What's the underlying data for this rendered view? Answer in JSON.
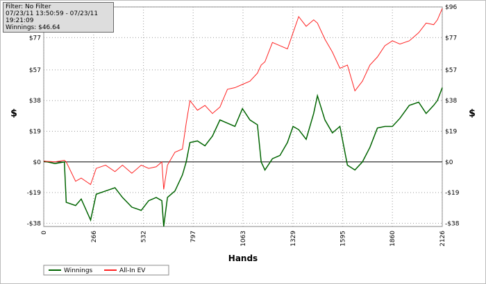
{
  "info": {
    "filter": "Filter: No Filter",
    "range": "07/23/11 13:50:59 - 07/23/11 19:21:09",
    "winnings": "Winnings: $46.64"
  },
  "chart_data": {
    "type": "line",
    "x_label": "Hands",
    "y_label": "$",
    "y2_label": "$",
    "x": [
      0,
      60,
      110,
      120,
      170,
      200,
      250,
      280,
      330,
      380,
      420,
      470,
      520,
      560,
      600,
      630,
      640,
      660,
      700,
      740,
      760,
      780,
      820,
      860,
      900,
      940,
      980,
      1020,
      1060,
      1100,
      1140,
      1160,
      1180,
      1220,
      1260,
      1300,
      1330,
      1360,
      1400,
      1440,
      1460,
      1500,
      1540,
      1580,
      1620,
      1660,
      1700,
      1740,
      1780,
      1820,
      1860,
      1900,
      1950,
      2000,
      2040,
      2080,
      2100,
      2126
    ],
    "series": [
      {
        "name": "Winnings",
        "color": "#006400",
        "values": [
          0.5,
          -1,
          0,
          -25,
          -27,
          -23,
          -36,
          -20,
          -18,
          -16,
          -22,
          -28,
          -30,
          -24,
          -22,
          -24,
          -40,
          -22,
          -18,
          -8,
          0,
          12,
          13,
          10,
          16,
          26,
          24,
          22,
          33,
          26,
          23,
          0,
          -5,
          2,
          4,
          12,
          22,
          20,
          14,
          30,
          41,
          26,
          18,
          22,
          -2,
          -5,
          0,
          9,
          21,
          22,
          22,
          27,
          35,
          37,
          30,
          35,
          38,
          46
        ]
      },
      {
        "name": "All-In EV",
        "color": "#ff2020",
        "values": [
          0.5,
          0,
          1,
          0,
          -12,
          -10,
          -14,
          -4,
          -2,
          -6,
          -2,
          -7,
          -2,
          -4,
          -3,
          0,
          -17,
          -2,
          6,
          8,
          24,
          38,
          32,
          35,
          30,
          34,
          45,
          46,
          48,
          50,
          55,
          60,
          62,
          74,
          72,
          70,
          80,
          90,
          84,
          88,
          86,
          76,
          68,
          58,
          60,
          44,
          50,
          60,
          65,
          72,
          75,
          73,
          75,
          80,
          86,
          85,
          88,
          95
        ]
      }
    ],
    "xlim": [
      0,
      2126
    ],
    "xticks": [
      0,
      266,
      532,
      797,
      1063,
      1329,
      1595,
      1860,
      2126
    ],
    "ylim": [
      -40,
      96
    ],
    "yticks": [
      {
        "value": 96,
        "label": "$96"
      },
      {
        "value": 77,
        "label": "$77"
      },
      {
        "value": 57,
        "label": "$57"
      },
      {
        "value": 38,
        "label": "$38"
      },
      {
        "value": 19,
        "label": "$19"
      },
      {
        "value": 0,
        "label": "$0"
      },
      {
        "value": -19,
        "label": "-$19"
      },
      {
        "value": -38,
        "label": "-$38"
      }
    ],
    "grid": true
  }
}
